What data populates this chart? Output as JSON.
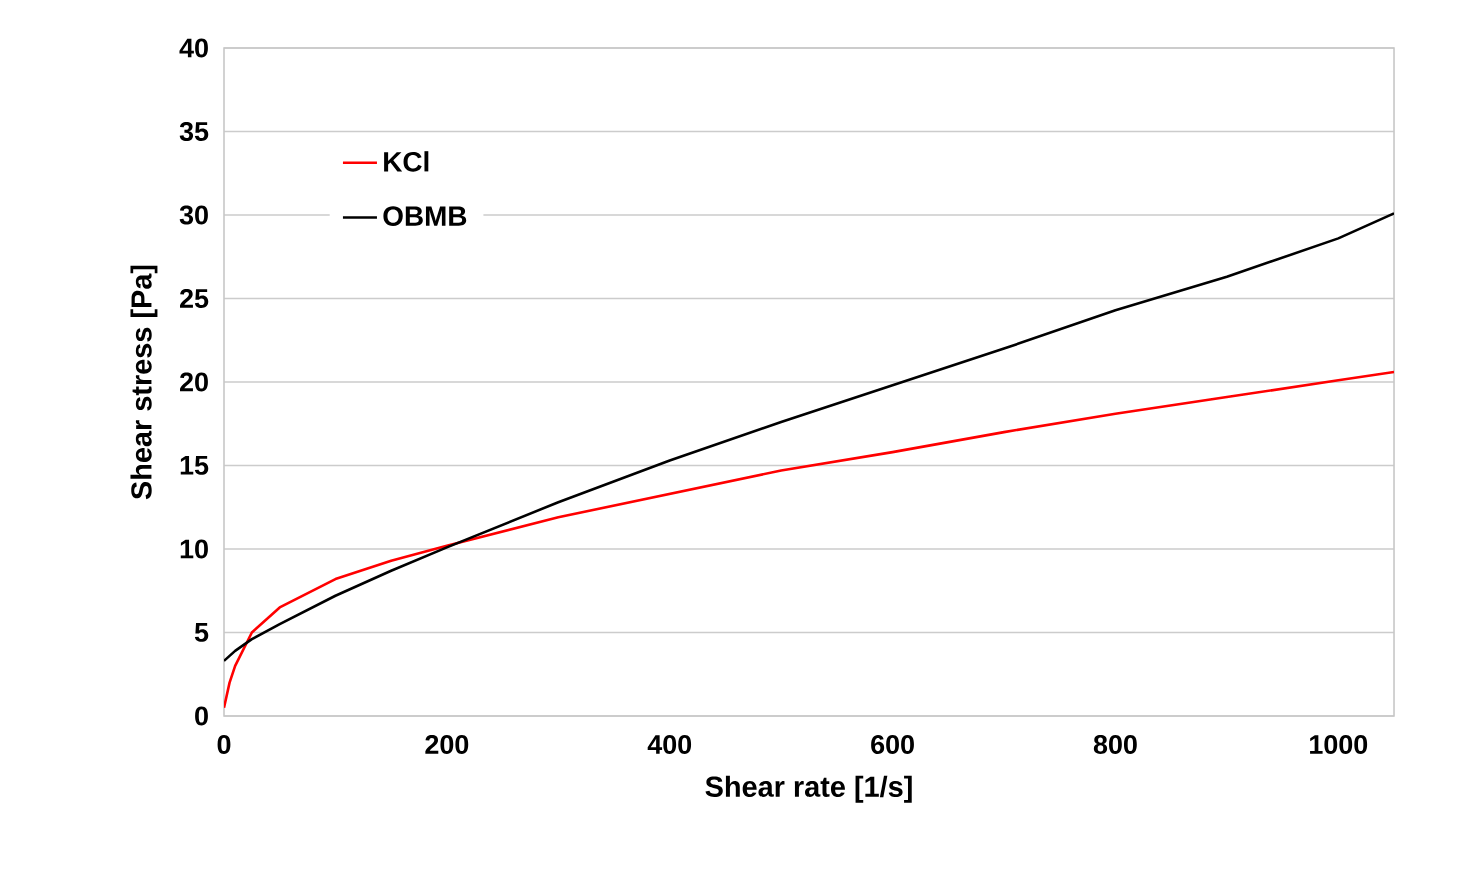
{
  "chart_data": {
    "type": "line",
    "xlabel": "Shear rate [1/s]",
    "ylabel": "Shear stress [Pa]",
    "xlim": [
      0,
      1050
    ],
    "ylim": [
      0,
      40
    ],
    "xticks": [
      0,
      200,
      400,
      600,
      800,
      1000
    ],
    "yticks": [
      0,
      5,
      10,
      15,
      20,
      25,
      30,
      35,
      40
    ],
    "grid": "y",
    "legend": "top left",
    "marker": "none",
    "line_style": "solid",
    "x": [
      0,
      5,
      10,
      25,
      50,
      100,
      150,
      200,
      300,
      400,
      500,
      600,
      700,
      800,
      900,
      1000,
      1050
    ],
    "series": [
      {
        "name": "KCl",
        "color": "#ff0000",
        "values": [
          0.5,
          2.0,
          3.0,
          5.0,
          6.5,
          8.2,
          9.3,
          10.2,
          11.9,
          13.3,
          14.7,
          15.8,
          17.0,
          18.1,
          19.1,
          20.1,
          20.6
        ]
      },
      {
        "name": "OBMB",
        "color": "#000000",
        "values": [
          3.3,
          3.6,
          3.9,
          4.6,
          5.5,
          7.2,
          8.7,
          10.1,
          12.8,
          15.3,
          17.6,
          19.8,
          22.0,
          24.3,
          26.3,
          28.6,
          30.1
        ]
      }
    ]
  }
}
